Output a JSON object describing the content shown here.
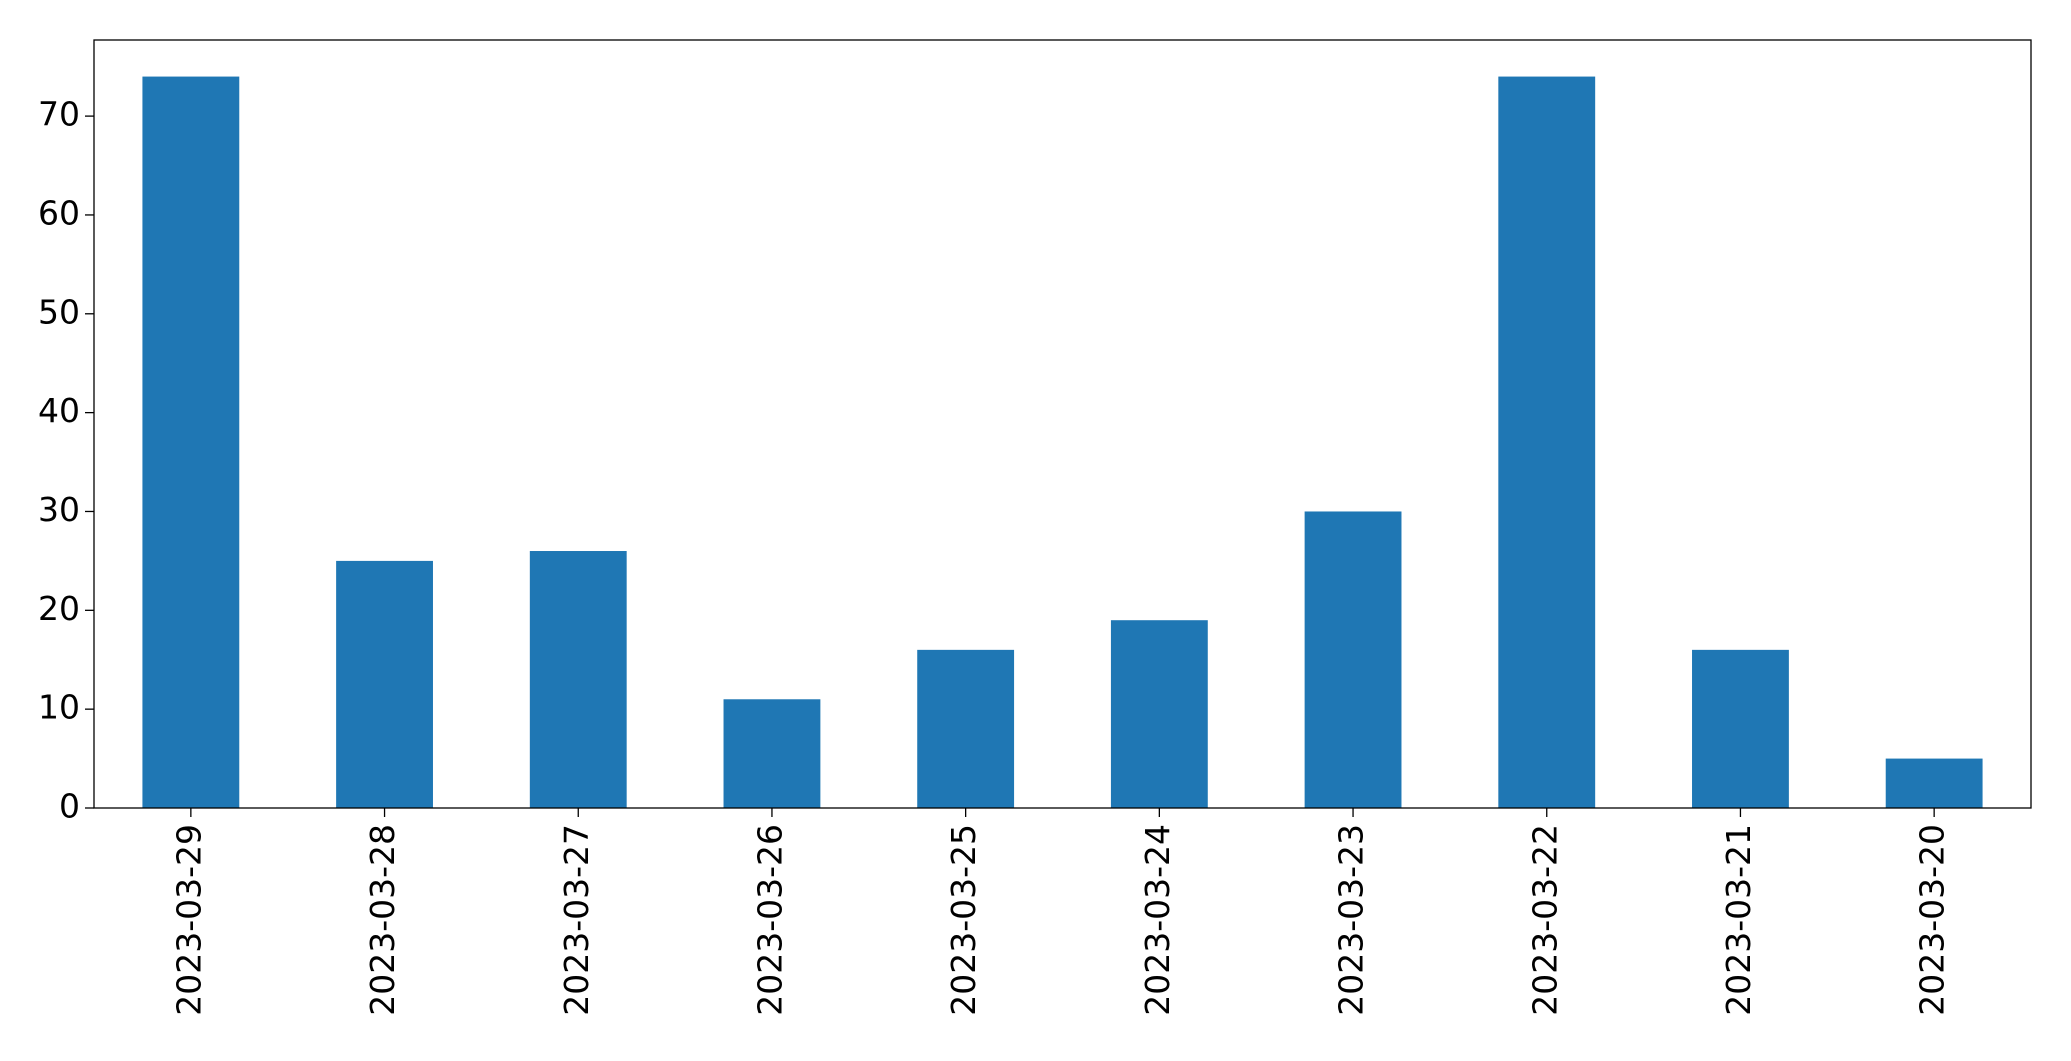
{
  "chart_data": {
    "type": "bar",
    "categories": [
      "2023-03-29",
      "2023-03-28",
      "2023-03-27",
      "2023-03-26",
      "2023-03-25",
      "2023-03-24",
      "2023-03-23",
      "2023-03-22",
      "2023-03-21",
      "2023-03-20"
    ],
    "values": [
      74,
      25,
      26,
      11,
      16,
      19,
      30,
      74,
      16,
      5
    ],
    "color": "#1f77b4",
    "ylim": [
      0,
      77.7
    ],
    "yticks": [
      0,
      10,
      20,
      30,
      40,
      50,
      60,
      70
    ],
    "grid": false
  }
}
